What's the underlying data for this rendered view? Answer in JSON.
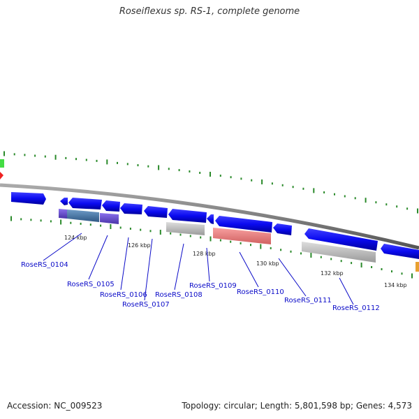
{
  "header": {
    "title": "Roseiflexus sp. RS-1, complete genome"
  },
  "footer": {
    "accession": "Accession: NC_009523",
    "summary": "Topology: circular; Length: 5,801,598 bp; Genes: 4,573"
  },
  "colors": {
    "gene_blue": "#0a0af0",
    "backbone": "#777777",
    "tick_green": "#2a8a2a",
    "feature_purple": "#6a4fd0",
    "feature_steelblue": "#4a78a8",
    "feature_gray": "#b8b8b8",
    "feature_red": "#f08080",
    "label_blue": "#0a0ac8",
    "edge_green": "#44dd44",
    "edge_red": "#ee2222"
  },
  "scale_labels": [
    "124 kbp",
    "126 kbp",
    "128 kbp",
    "130 kbp",
    "132 kbp",
    "134 kbp"
  ],
  "gene_labels": [
    "RoseRS_0104",
    "RoseRS_0105",
    "RoseRS_0106",
    "RoseRS_0107",
    "RoseRS_0108",
    "RoseRS_0109",
    "RoseRS_0110",
    "RoseRS_0111",
    "RoseRS_0112"
  ]
}
